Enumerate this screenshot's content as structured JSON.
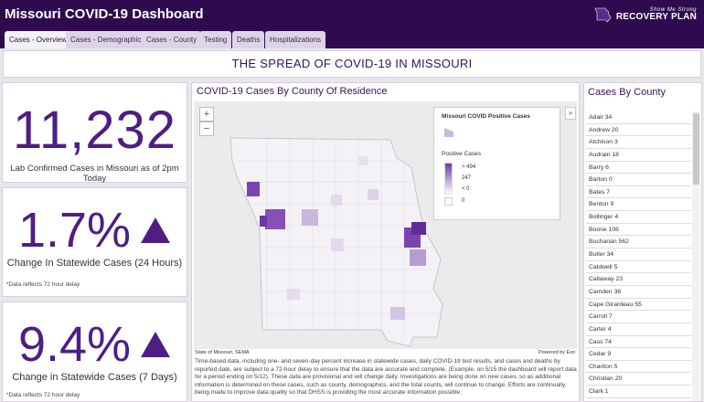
{
  "app": {
    "title": "Missouri COVID-19 Dashboard",
    "logo": {
      "tagline": "Show Me Strong",
      "name": "RECOVERY PLAN"
    }
  },
  "tabs": [
    {
      "label": "Cases - Overview",
      "active": true
    },
    {
      "label": "Cases - Demographics",
      "active": false
    },
    {
      "label": "Cases - County",
      "active": false
    },
    {
      "label": "Testing",
      "active": false
    },
    {
      "label": "Deaths",
      "active": false
    },
    {
      "label": "Hospitalizations",
      "active": false
    }
  ],
  "banner": {
    "title": "THE SPREAD OF COVID-19 IN MISSOURI"
  },
  "kpis": [
    {
      "value": "11,232",
      "label": "Lab Confirmed Cases in Missouri as of 2pm Today"
    },
    {
      "value": "1.7%",
      "label": "Change In Statewide Cases (24 Hours)",
      "note": "*Data reflects 72 hour delay",
      "trend": "up"
    },
    {
      "value": "9.4%",
      "label": "Change in Statewide Cases (7 Days)",
      "note": "*Data reflects 72 hour delay",
      "trend": "up"
    }
  ],
  "map": {
    "title": "COVID-19 Cases By County Of Residence",
    "zoom_in": "+",
    "zoom_out": "−",
    "legend": {
      "title": "Missouri COVID Positive Cases",
      "subtitle": "Positive Cases",
      "labels": [
        "> 494",
        "247",
        "< 0",
        "0"
      ]
    },
    "legend_toggle": "»",
    "attribution_left": "State of Missouri, SEMA",
    "attribution_right": "Powered by Esri",
    "description": "Time-based data, including one- and seven-day percent increase in statewide cases, daily COVID-19 test results, and cases and deaths by reported date, are subject to a 72-hour delay to ensure that the data are accurate and complete. (Example, on 5/15 the dashboard will report data for a period ending on 5/12). These data are provisional and will change daily. Investigations are being done on new cases, so as additional information is determined on these cases, such as county, demographics, and the total counts, will continue to change. Efforts are continually being made to improve data quality so that DHSS is providing the most accurate information possible."
  },
  "colors": {
    "header_bg": "#2d0b4e",
    "accent": "#4e1e84",
    "map_low": "#ffffff",
    "map_high": "#6d3aa8"
  },
  "county_panel": {
    "title": "Cases By County",
    "items": [
      "Adair 34",
      "Andrew 20",
      "Atchison 3",
      "Audrain 18",
      "Barry 6",
      "Barton 0",
      "Bates 7",
      "Benton 9",
      "Bollinger 4",
      "Boone 106",
      "Buchanan 562",
      "Butler 34",
      "Caldwell 5",
      "Callaway 23",
      "Camden 36",
      "Cape Girardeau 55",
      "Carroll 7",
      "Carter 4",
      "Cass 74",
      "Cedar 9",
      "Chariton 5",
      "Christian 20",
      "Clark 1"
    ]
  }
}
